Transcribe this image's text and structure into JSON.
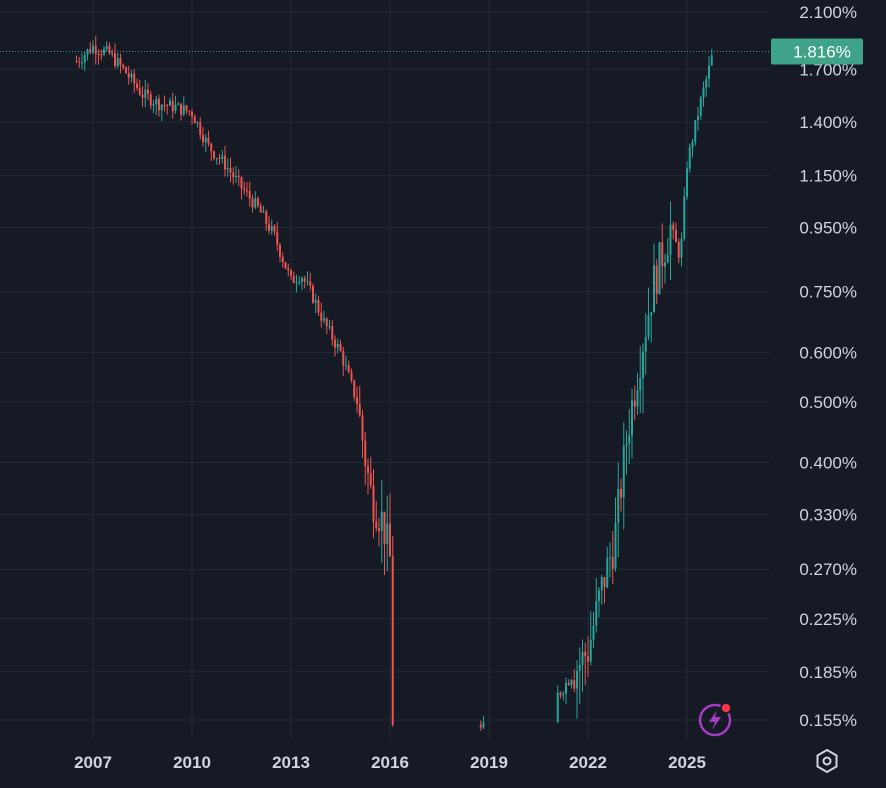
{
  "chart_data": {
    "type": "candlestick",
    "scale": "log",
    "grid": true,
    "interval": "monthly",
    "x_ticks": [
      "2007",
      "2010",
      "2013",
      "2016",
      "2019",
      "2022",
      "2025"
    ],
    "y_ticks": [
      "2.100%",
      "1.700%",
      "1.400%",
      "1.150%",
      "0.950%",
      "0.750%",
      "0.600%",
      "0.500%",
      "0.400%",
      "0.330%",
      "0.270%",
      "0.225%",
      "0.185%",
      "0.155%"
    ],
    "y_tick_values": [
      2.1,
      1.7,
      1.4,
      1.15,
      0.95,
      0.75,
      0.6,
      0.5,
      0.4,
      0.33,
      0.27,
      0.225,
      0.185,
      0.155
    ],
    "last_price": 1.816,
    "last_price_label": "1.816%",
    "colors": {
      "up": "#26a69a",
      "down": "#ef5350",
      "price_tag": "#3fa38a",
      "grid": "#242936",
      "background": "#161a25",
      "alert_icon": "#a23ebf"
    },
    "series": [
      {
        "date": "2006.5",
        "value": 1.75
      },
      {
        "date": "2007.0",
        "value": 1.85
      },
      {
        "date": "2007.5",
        "value": 1.8
      },
      {
        "date": "2008.0",
        "value": 1.68
      },
      {
        "date": "2008.5",
        "value": 1.55
      },
      {
        "date": "2009.0",
        "value": 1.5
      },
      {
        "date": "2009.5",
        "value": 1.48
      },
      {
        "date": "2010.0",
        "value": 1.45
      },
      {
        "date": "2010.5",
        "value": 1.28
      },
      {
        "date": "2011.0",
        "value": 1.2
      },
      {
        "date": "2011.5",
        "value": 1.1
      },
      {
        "date": "2012.0",
        "value": 1.02
      },
      {
        "date": "2012.5",
        "value": 0.92
      },
      {
        "date": "2013.0",
        "value": 0.78
      },
      {
        "date": "2013.3",
        "value": 0.8
      },
      {
        "date": "2013.7",
        "value": 0.73
      },
      {
        "date": "2014.0",
        "value": 0.67
      },
      {
        "date": "2014.5",
        "value": 0.6
      },
      {
        "date": "2015.0",
        "value": 0.5
      },
      {
        "date": "2015.4",
        "value": 0.36
      },
      {
        "date": "2015.8",
        "value": 0.32
      },
      {
        "date": "2016.0",
        "value": 0.28
      },
      {
        "date": "2016.1",
        "value": 0.14
      },
      {
        "date": "2018.8",
        "value": 0.15
      },
      {
        "date": "2021.1",
        "value": 0.17
      },
      {
        "date": "2022.0",
        "value": 0.2
      },
      {
        "date": "2022.4",
        "value": 0.25
      },
      {
        "date": "2022.8",
        "value": 0.3
      },
      {
        "date": "2023.2",
        "value": 0.45
      },
      {
        "date": "2023.6",
        "value": 0.6
      },
      {
        "date": "2024.0",
        "value": 0.78
      },
      {
        "date": "2024.5",
        "value": 0.95
      },
      {
        "date": "2024.8",
        "value": 0.85
      },
      {
        "date": "2025.0",
        "value": 1.2
      },
      {
        "date": "2025.4",
        "value": 1.5
      },
      {
        "date": "2025.8",
        "value": 1.816
      }
    ]
  }
}
